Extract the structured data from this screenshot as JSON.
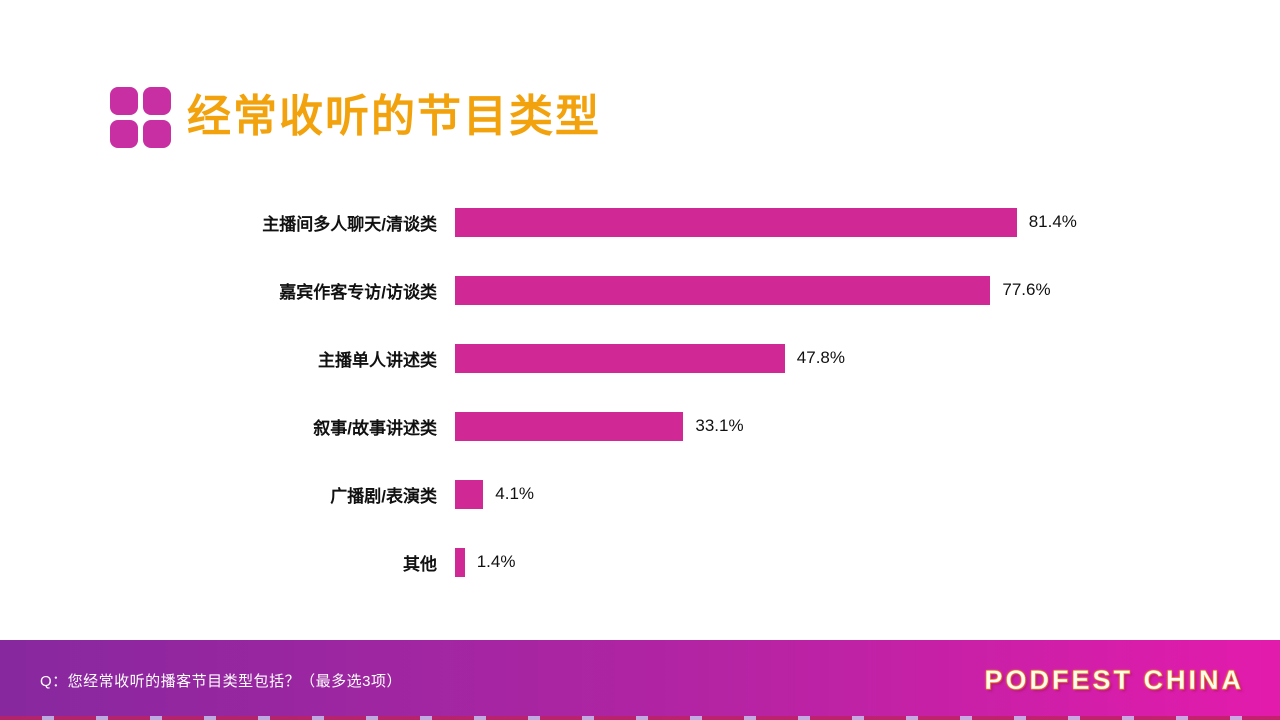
{
  "slide": {
    "title": "经常收听的节目类型",
    "title_color": "#F2A20D",
    "icon_color": "#C72FA2"
  },
  "chart_data": {
    "type": "bar",
    "orientation": "horizontal",
    "title": "经常收听的节目类型",
    "categories": [
      "主播间多人聊天/清谈类",
      "嘉宾作客专访/访谈类",
      "主播单人讲述类",
      "叙事/故事讲述类",
      "广播剧/表演类",
      "其他"
    ],
    "values": [
      81.4,
      77.6,
      47.8,
      33.1,
      4.1,
      1.4
    ],
    "value_labels": [
      "81.4%",
      "77.6%",
      "47.8%",
      "33.1%",
      "4.1%",
      "1.4%"
    ],
    "xlim": [
      0,
      100
    ],
    "grid": false,
    "bar_color": "#D02894",
    "label_color": "#111111"
  },
  "footer": {
    "question": "Q：您经常收听的播客节目类型包括？（最多选3项）",
    "brand": "PODFEST CHINA",
    "gradient_left": "#87289F",
    "gradient_mid": "#B324A3",
    "gradient_right": "#E31BAC"
  }
}
